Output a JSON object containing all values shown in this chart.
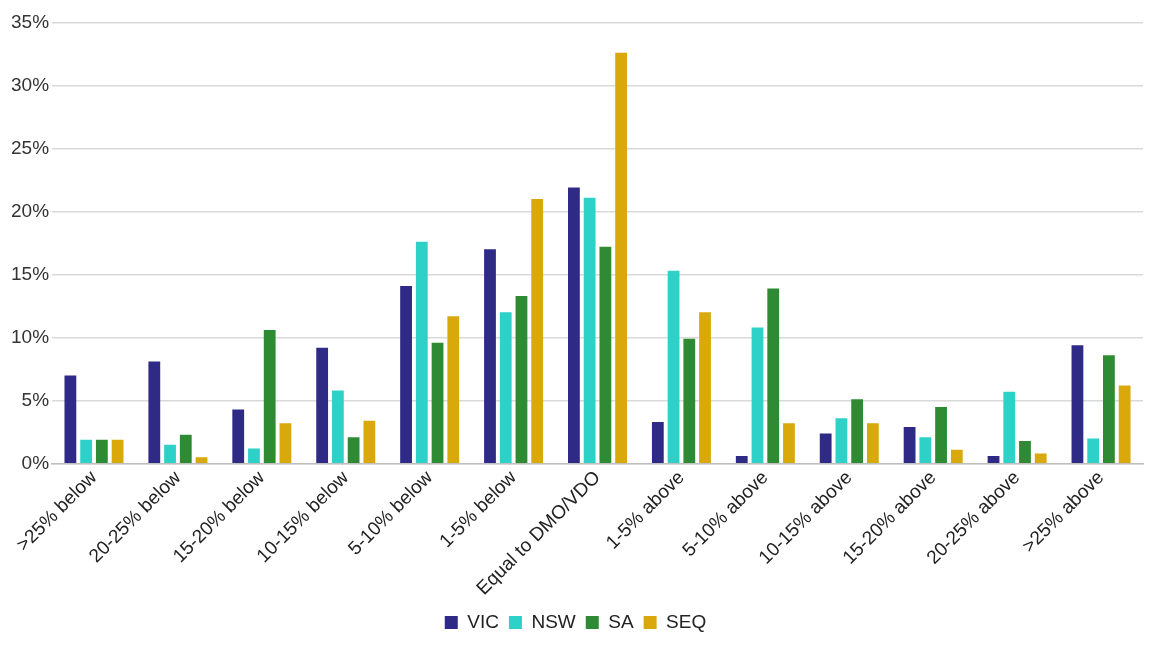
{
  "chart_data": {
    "type": "bar",
    "categories": [
      ">25% below",
      "20-25% below",
      "15-20% below",
      "10-15% below",
      "5-10% below",
      "1-5% below",
      "Equal to DMO/VDO",
      "1-5% above",
      "5-10% above",
      "10-15% above",
      "15-20% above",
      "20-25% above",
      ">25% above"
    ],
    "series": [
      {
        "name": "VIC",
        "color": "#2e2a86",
        "values": [
          7.0,
          8.1,
          4.3,
          9.2,
          14.1,
          17.0,
          21.9,
          3.3,
          0.6,
          2.4,
          2.9,
          0.6,
          9.4
        ]
      },
      {
        "name": "NSW",
        "color": "#2ed1c8",
        "values": [
          1.9,
          1.5,
          1.2,
          5.8,
          17.6,
          12.0,
          21.1,
          15.3,
          10.8,
          3.6,
          2.1,
          5.7,
          2.0
        ]
      },
      {
        "name": "SA",
        "color": "#2e8b34",
        "values": [
          1.9,
          2.3,
          10.6,
          2.1,
          9.6,
          13.3,
          17.2,
          9.9,
          13.9,
          5.1,
          4.5,
          1.8,
          8.6
        ]
      },
      {
        "name": "SEQ",
        "color": "#d9a90c",
        "values": [
          1.9,
          0.5,
          3.2,
          3.4,
          11.7,
          21.0,
          32.6,
          12.0,
          3.2,
          3.2,
          1.1,
          0.8,
          6.2
        ]
      }
    ],
    "ylim": [
      0,
      35
    ],
    "yticks": [
      {
        "value": 0,
        "label": "0%"
      },
      {
        "value": 5,
        "label": "5%"
      },
      {
        "value": 10,
        "label": "10%"
      },
      {
        "value": 15,
        "label": "15%"
      },
      {
        "value": 20,
        "label": "20%"
      },
      {
        "value": 25,
        "label": "25%"
      },
      {
        "value": 30,
        "label": "30%"
      },
      {
        "value": 35,
        "label": "35%"
      }
    ],
    "grid": "y",
    "legend": "bottom"
  }
}
